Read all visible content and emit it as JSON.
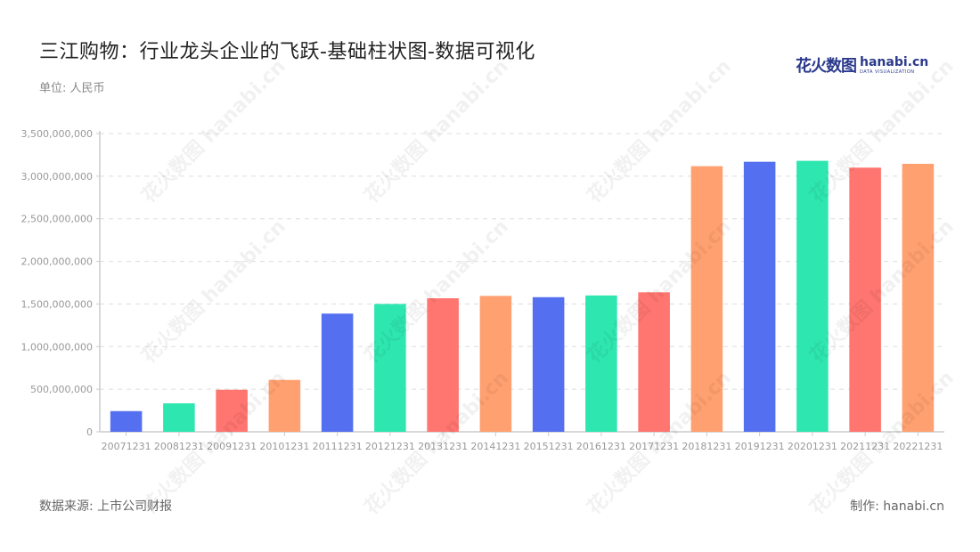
{
  "header": {
    "title": "三江购物：行业龙头企业的飞跃-基础柱状图-数据可视化",
    "unit": "单位: 人民币",
    "logo_cn": "花火数图",
    "logo_en": "hanabi.cn",
    "logo_sub": "DATA VISUALIZATION"
  },
  "footer": {
    "source": "数据来源: 上市公司财报",
    "maker": "制作: hanabi.cn"
  },
  "watermark": "花火数图 hanabi.cn",
  "colors": {
    "palette": [
      "#5470f0",
      "#2ee6b0",
      "#ff7570",
      "#ffa070"
    ],
    "axis": "#cccccc",
    "grid": "#dddddd",
    "tick_label": "#999999"
  },
  "chart_data": {
    "type": "bar",
    "title": "三江购物：行业龙头企业的飞跃-基础柱状图-数据可视化",
    "xlabel": "",
    "ylabel": "单位: 人民币",
    "ylim": [
      0,
      3500000000
    ],
    "yticks": [
      0,
      500000000,
      1000000000,
      1500000000,
      2000000000,
      2500000000,
      3000000000,
      3500000000
    ],
    "ytick_labels": [
      "0",
      "500,000,000",
      "1,000,000,000",
      "1,500,000,000",
      "2,000,000,000",
      "2,500,000,000",
      "3,000,000,000",
      "3,500,000,000"
    ],
    "grid": true,
    "legend": "none",
    "categories": [
      "20071231",
      "20081231",
      "20091231",
      "20101231",
      "20111231",
      "20121231",
      "20131231",
      "20141231",
      "20151231",
      "20161231",
      "20171231",
      "20181231",
      "20191231",
      "20201231",
      "20211231",
      "20221231"
    ],
    "values": [
      243000000,
      334000000,
      494000000,
      609000000,
      1387000000,
      1500000000,
      1567000000,
      1595000000,
      1580000000,
      1600000000,
      1637000000,
      3117000000,
      3169000000,
      3180000000,
      3100000000,
      3145000000
    ]
  }
}
